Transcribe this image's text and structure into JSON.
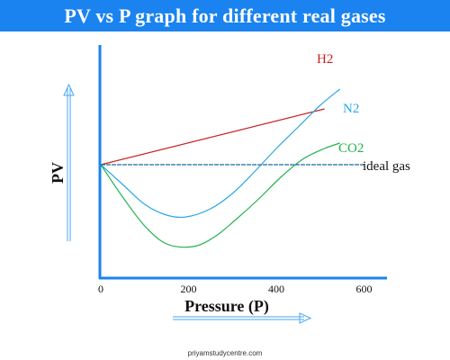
{
  "title": "PV vs P graph for different real gases",
  "watermark": "priyamstudycentre.com",
  "chart_data": {
    "type": "line",
    "title": "PV vs P graph for different real gases",
    "xlabel": "Pressure (P)",
    "ylabel": "PV",
    "x_ticks": [
      0,
      200,
      400,
      600
    ],
    "xlim": [
      0,
      690
    ],
    "grid": false,
    "series": [
      {
        "name": "H2",
        "color": "#cc1f1f",
        "points": [
          [
            0,
            0
          ],
          [
            510,
            62
          ]
        ]
      },
      {
        "name": "N2",
        "color": "#29a8e6",
        "points": [
          [
            0,
            0
          ],
          [
            50,
            -22
          ],
          [
            100,
            -44
          ],
          [
            150,
            -56
          ],
          [
            195,
            -58
          ],
          [
            250,
            -49
          ],
          [
            300,
            -32
          ],
          [
            350,
            -8
          ],
          [
            400,
            18
          ],
          [
            450,
            42
          ],
          [
            500,
            66
          ],
          [
            545,
            84
          ]
        ]
      },
      {
        "name": "CO2",
        "color": "#22b24a",
        "points": [
          [
            0,
            0
          ],
          [
            50,
            -36
          ],
          [
            100,
            -68
          ],
          [
            150,
            -88
          ],
          [
            210,
            -91
          ],
          [
            260,
            -80
          ],
          [
            310,
            -60
          ],
          [
            360,
            -38
          ],
          [
            410,
            -14
          ],
          [
            460,
            6
          ],
          [
            510,
            18
          ],
          [
            545,
            24
          ]
        ]
      },
      {
        "name": "ideal gas",
        "color": "#1e6aa3",
        "dashed": true,
        "points": [
          [
            0,
            0
          ],
          [
            600,
            0
          ]
        ]
      }
    ]
  },
  "colors": {
    "title_bar": "#1a83f0",
    "axis": "#1a83f0",
    "arrow": "#4aa6f2",
    "axis_label": "#111111"
  }
}
